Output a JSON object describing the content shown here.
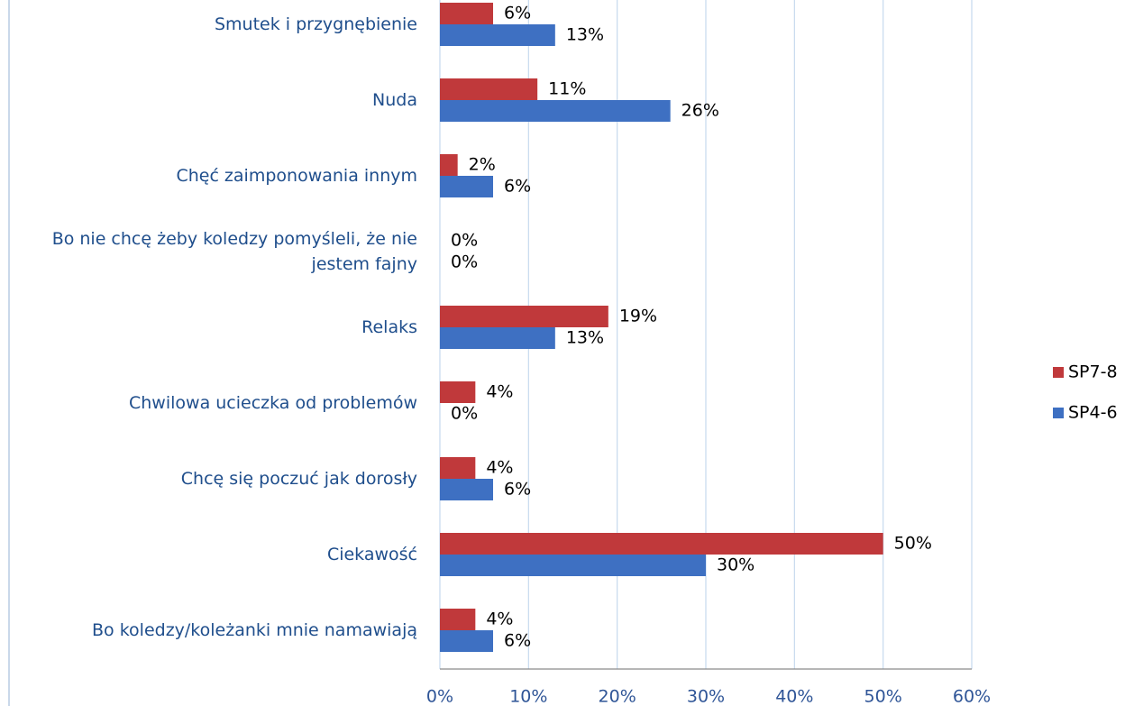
{
  "chart_data": {
    "type": "bar",
    "orientation": "horizontal",
    "categories": [
      "Smutek i przygnębienie",
      "Nuda",
      "Chęć zaimponowania innym",
      "Bo nie chcę żeby koledzy pomyśleli, że nie jestem fajny",
      "Relaks",
      "Chwilowa ucieczka od problemów",
      "Chcę się poczuć jak dorosły",
      "Ciekawość",
      "Bo koledzy/koleżanki mnie namawiają"
    ],
    "series": [
      {
        "name": "SP7-8",
        "color": "#c0393b",
        "values": [
          6,
          11,
          2,
          0,
          19,
          4,
          4,
          50,
          4
        ],
        "value_labels": [
          "6%",
          "11%",
          "2%",
          "0%",
          "19%",
          "4%",
          "4%",
          "50%",
          "4%"
        ]
      },
      {
        "name": "SP4-6",
        "color": "#3e70c2",
        "values": [
          13,
          26,
          6,
          0,
          13,
          0,
          6,
          30,
          6
        ],
        "value_labels": [
          "13%",
          "26%",
          "6%",
          "0%",
          "13%",
          "0%",
          "6%",
          "30%",
          "6%"
        ]
      }
    ],
    "xlim": [
      0,
      60
    ],
    "xticks": [
      {
        "value": 0,
        "label": "0%"
      },
      {
        "value": 10,
        "label": "10%"
      },
      {
        "value": 20,
        "label": "20%"
      },
      {
        "value": 30,
        "label": "30%"
      },
      {
        "value": 40,
        "label": "40%"
      },
      {
        "value": 50,
        "label": "50%"
      },
      {
        "value": 60,
        "label": "60%"
      }
    ],
    "grid": true,
    "legend": "right"
  }
}
